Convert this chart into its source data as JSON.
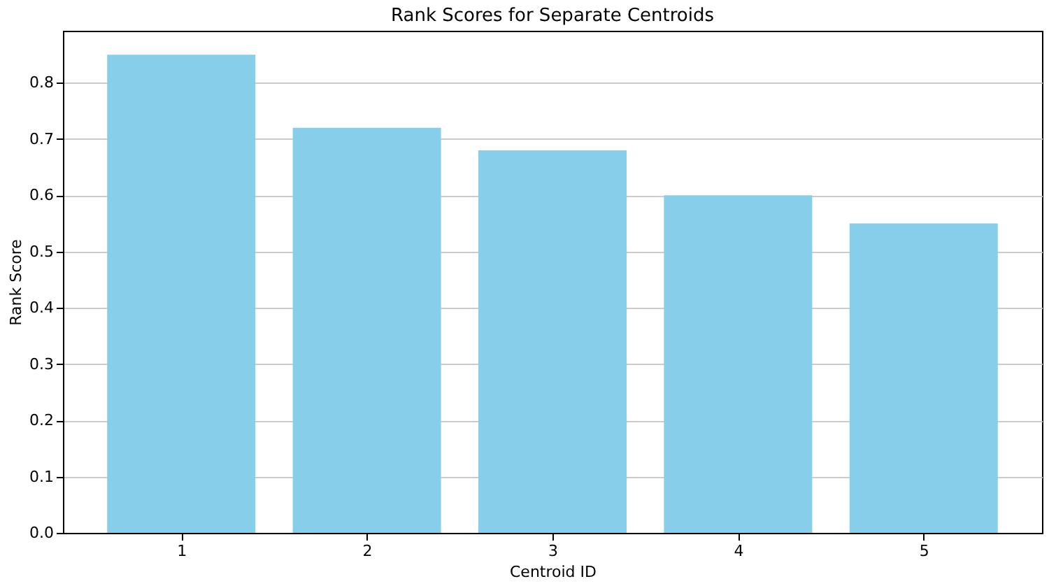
{
  "chart_data": {
    "type": "bar",
    "title": "Rank Scores for Separate Centroids",
    "xlabel": "Centroid ID",
    "ylabel": "Rank Score",
    "categories": [
      "1",
      "2",
      "3",
      "4",
      "5"
    ],
    "values": [
      0.85,
      0.72,
      0.68,
      0.6,
      0.55
    ],
    "color": "#87ceeb",
    "ylim": [
      0,
      0.8925
    ],
    "yticks": [
      {
        "value": 0,
        "label": "0.0"
      },
      0.1,
      0.2,
      0.3,
      0.4,
      0.5,
      0.6,
      0.7,
      0.8
    ],
    "grid": "y"
  }
}
